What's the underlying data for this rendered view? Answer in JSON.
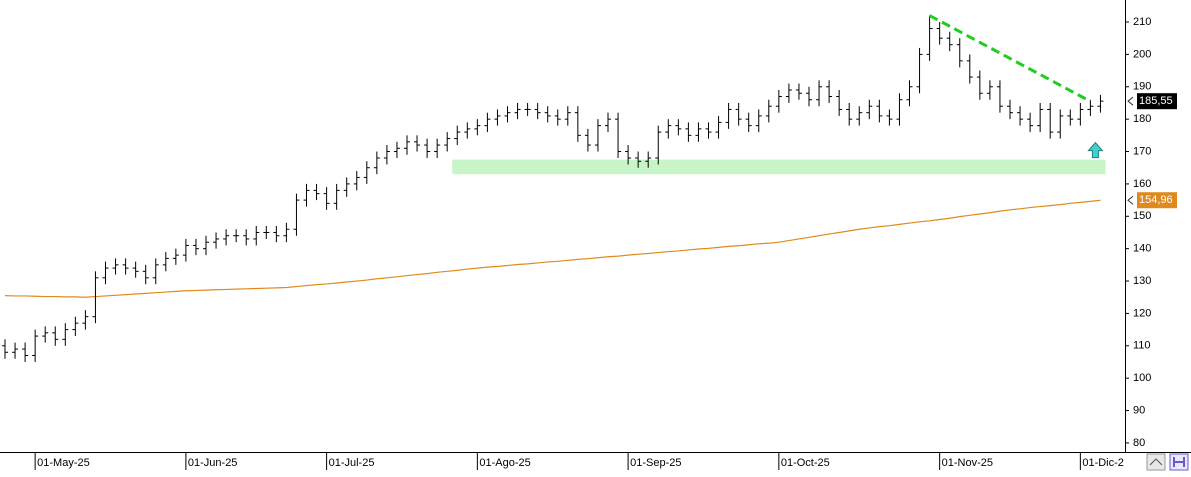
{
  "chart_data": {
    "type": "ohlc",
    "categories": [
      null,
      null,
      null,
      "01-May-25",
      null,
      null,
      null,
      null,
      null,
      null,
      null,
      null,
      null,
      null,
      null,
      null,
      null,
      null,
      "01-Jun-25",
      null,
      null,
      null,
      null,
      null,
      null,
      null,
      null,
      null,
      null,
      null,
      null,
      null,
      "01-Jul-25",
      null,
      null,
      null,
      null,
      null,
      null,
      null,
      null,
      null,
      null,
      null,
      null,
      null,
      null,
      "01-Ago-25",
      null,
      null,
      null,
      null,
      null,
      null,
      null,
      null,
      null,
      null,
      null,
      null,
      null,
      null,
      "01-Sep-25",
      null,
      null,
      null,
      null,
      null,
      null,
      null,
      null,
      null,
      null,
      null,
      null,
      null,
      null,
      "01-Oct-25",
      null,
      null,
      null,
      null,
      null,
      null,
      null,
      null,
      null,
      null,
      null,
      null,
      null,
      null,
      null,
      "01-Nov-25",
      null,
      null,
      null,
      null,
      null,
      null,
      null,
      null,
      null,
      null,
      null,
      null,
      null,
      "01-Dic-2",
      null,
      null
    ],
    "ohlc": {
      "color": "#000000",
      "open": [
        110,
        108,
        109,
        107,
        113,
        114,
        112,
        115,
        117,
        119,
        131,
        134,
        135,
        134,
        133,
        131,
        135,
        137,
        138,
        141,
        140,
        142,
        143,
        144,
        144,
        143,
        145,
        145,
        144,
        146,
        155,
        158,
        157,
        154,
        158,
        160,
        162,
        165,
        168,
        170,
        171,
        173,
        172,
        170,
        172,
        174,
        176,
        177,
        178,
        180,
        181,
        182,
        183,
        183,
        182,
        181,
        180,
        182,
        175,
        172,
        178,
        180,
        170,
        168,
        167,
        168,
        176,
        178,
        177,
        175,
        177,
        176,
        179,
        183,
        180,
        178,
        181,
        184,
        187,
        189,
        188,
        186,
        190,
        187,
        183,
        180,
        182,
        184,
        181,
        180,
        186,
        190,
        200,
        208,
        205,
        203,
        198,
        193,
        188,
        190,
        184,
        182,
        180,
        178,
        183,
        176,
        181,
        180,
        183,
        184
      ],
      "high": [
        112,
        111,
        111,
        115,
        116,
        116,
        117,
        119,
        121,
        133,
        136,
        137,
        137,
        136,
        135,
        137,
        139,
        140,
        143,
        143,
        144,
        145,
        146,
        146,
        146,
        147,
        147,
        147,
        148,
        157,
        160,
        160,
        159,
        160,
        162,
        164,
        167,
        170,
        172,
        173,
        175,
        175,
        174,
        174,
        176,
        178,
        179,
        180,
        182,
        183,
        184,
        185,
        185,
        185,
        184,
        183,
        184,
        184,
        177,
        180,
        182,
        182,
        172,
        170,
        170,
        178,
        180,
        180,
        179,
        179,
        179,
        181,
        185,
        185,
        182,
        183,
        186,
        189,
        191,
        191,
        190,
        192,
        192,
        189,
        185,
        184,
        186,
        186,
        183,
        188,
        192,
        202,
        212,
        210,
        207,
        205,
        200,
        195,
        192,
        192,
        186,
        184,
        182,
        185,
        185,
        183,
        183,
        185,
        186,
        187.5
      ],
      "low": [
        106,
        106,
        105,
        105,
        111,
        110,
        110,
        113,
        115,
        117,
        129,
        132,
        132,
        131,
        129,
        129,
        133,
        135,
        136,
        138,
        138,
        140,
        141,
        142,
        141,
        141,
        143,
        142,
        142,
        144,
        153,
        155,
        152,
        152,
        156,
        158,
        160,
        163,
        166,
        168,
        169,
        170,
        168,
        168,
        170,
        172,
        174,
        175,
        176,
        178,
        179,
        180,
        181,
        180,
        179,
        178,
        178,
        173,
        170,
        170,
        176,
        168,
        166,
        165,
        165,
        166,
        174,
        175,
        173,
        173,
        174,
        174,
        177,
        178,
        176,
        176,
        179,
        182,
        185,
        186,
        184,
        184,
        185,
        181,
        178,
        178,
        180,
        179,
        178,
        178,
        184,
        188,
        198,
        203,
        201,
        196,
        191,
        186,
        186,
        182,
        180,
        178,
        176,
        176,
        174,
        174,
        178,
        178,
        181,
        182
      ],
      "close": [
        108,
        109,
        107,
        113,
        114,
        112,
        115,
        117,
        119,
        131,
        134,
        135,
        134,
        133,
        131,
        135,
        137,
        138,
        141,
        140,
        142,
        143,
        144,
        144,
        143,
        145,
        145,
        144,
        146,
        155,
        158,
        157,
        154,
        158,
        160,
        162,
        165,
        168,
        170,
        171,
        173,
        172,
        170,
        172,
        174,
        176,
        177,
        178,
        180,
        181,
        182,
        183,
        183,
        182,
        181,
        180,
        182,
        175,
        172,
        178,
        180,
        170,
        168,
        167,
        168,
        176,
        178,
        177,
        175,
        177,
        176,
        179,
        183,
        180,
        178,
        181,
        184,
        187,
        189,
        188,
        186,
        190,
        187,
        183,
        180,
        182,
        184,
        181,
        180,
        186,
        190,
        200,
        208,
        205,
        203,
        198,
        193,
        188,
        190,
        184,
        182,
        180,
        178,
        183,
        176,
        181,
        180,
        183,
        184,
        185.55
      ]
    },
    "moving_average": {
      "color": "#e08a1e",
      "values": [
        125.5,
        125.4,
        125.4,
        125.3,
        125.2,
        125.2,
        125.1,
        125.1,
        125,
        125.2,
        125.4,
        125.6,
        125.8,
        126,
        126.2,
        126.4,
        126.6,
        126.8,
        127,
        127.1,
        127.2,
        127.3,
        127.4,
        127.5,
        127.6,
        127.7,
        127.8,
        127.9,
        128,
        128.3,
        128.6,
        128.9,
        129.1,
        129.4,
        129.7,
        130,
        130.3,
        130.7,
        131,
        131.3,
        131.7,
        132,
        132.3,
        132.7,
        133,
        133.3,
        133.7,
        134,
        134.3,
        134.5,
        134.8,
        135.1,
        135.3,
        135.6,
        135.9,
        136.1,
        136.4,
        136.7,
        136.9,
        137.2,
        137.5,
        137.7,
        138,
        138.3,
        138.5,
        138.8,
        139.1,
        139.3,
        139.6,
        139.9,
        140.1,
        140.4,
        140.7,
        140.9,
        141.2,
        141.5,
        141.7,
        142,
        142.5,
        143,
        143.5,
        144,
        144.5,
        145,
        145.5,
        146,
        146.4,
        146.8,
        147.1,
        147.5,
        147.9,
        148.3,
        148.6,
        149,
        149.4,
        149.9,
        150.3,
        150.7,
        151.1,
        151.6,
        152,
        152.3,
        152.7,
        153,
        153.3,
        153.6,
        154,
        154.3,
        154.6,
        154.96
      ],
      "last_label": {
        "value": 154.96,
        "label": "154,96"
      }
    },
    "last_price": {
      "value": 185.55,
      "label": "185,55"
    },
    "trendline": {
      "color": "#22cc22",
      "x": [
        92,
        108
      ],
      "y": [
        212,
        185.5
      ]
    },
    "support_zone": {
      "color": "#c8f5c8",
      "x": [
        44.5,
        109.5
      ],
      "y": [
        163,
        167.5
      ]
    },
    "ylim": [
      77.2,
      216.8
    ],
    "yticks": [
      80,
      90,
      100,
      110,
      120,
      130,
      140,
      150,
      160,
      170,
      180,
      190,
      200,
      210
    ]
  }
}
